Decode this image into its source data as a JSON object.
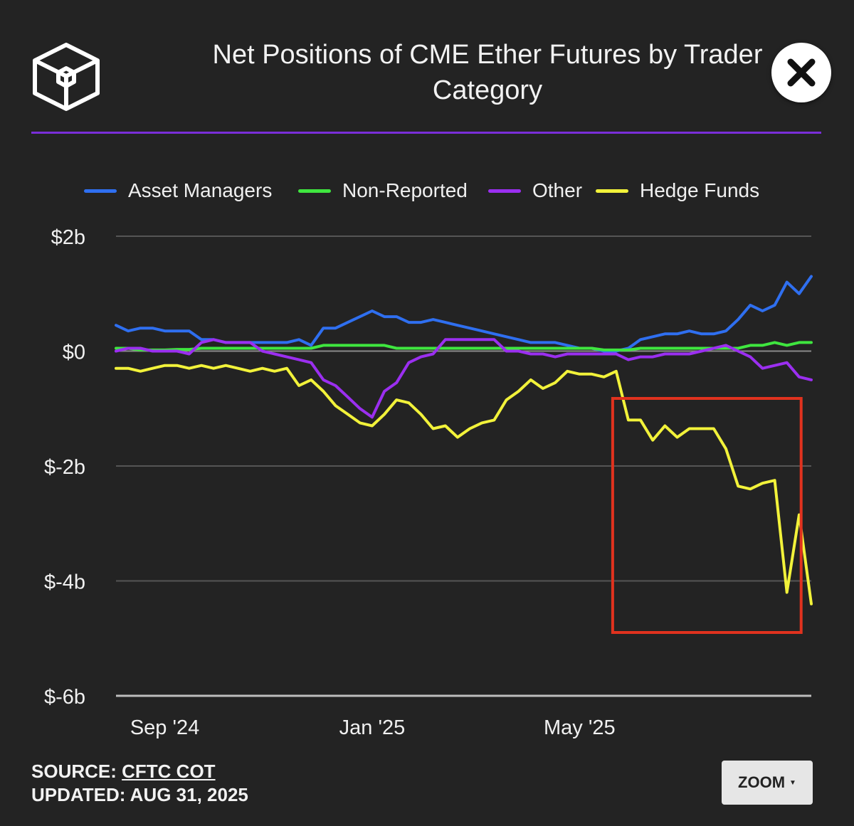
{
  "header": {
    "title": "Net Positions of CME Ether Futures by Trader\nCategory",
    "logo_icon": "cube-logo-icon",
    "close_icon": "close-icon"
  },
  "accent_color": "#7a2ed8",
  "legend": [
    {
      "name": "Asset Managers",
      "color": "#2f6ff0"
    },
    {
      "name": "Non-Reported",
      "color": "#3fe63f"
    },
    {
      "name": "Other",
      "color": "#9b2ff0"
    },
    {
      "name": "Hedge Funds",
      "color": "#f2f23a"
    }
  ],
  "chart_data": {
    "type": "line",
    "title": "Net Positions of CME Ether Futures by Trader Category",
    "xlabel": "",
    "ylabel": "",
    "y_unit": "billion USD",
    "ylim": [
      -6,
      2
    ],
    "yticks": [
      2,
      0,
      -2,
      -4,
      -6
    ],
    "ytick_labels": [
      "$2b",
      "$0",
      "$-2b",
      "$-4b",
      "$-6b"
    ],
    "xticks": [
      {
        "label": "Sep '24",
        "index": 4
      },
      {
        "label": "Jan '25",
        "index": 21
      },
      {
        "label": "May '25",
        "index": 38
      }
    ],
    "grid": true,
    "highlight_box": {
      "from_index": 42,
      "to_index": 55,
      "color": "#e0321e"
    },
    "series": [
      {
        "name": "Asset Managers",
        "color": "#2f6ff0",
        "values": [
          0.45,
          0.35,
          0.4,
          0.4,
          0.35,
          0.35,
          0.35,
          0.2,
          0.2,
          0.15,
          0.15,
          0.15,
          0.15,
          0.15,
          0.15,
          0.2,
          0.1,
          0.4,
          0.4,
          0.5,
          0.6,
          0.7,
          0.6,
          0.6,
          0.5,
          0.5,
          0.55,
          0.5,
          0.45,
          0.4,
          0.35,
          0.3,
          0.25,
          0.2,
          0.15,
          0.15,
          0.15,
          0.1,
          0.05,
          0.05,
          0.0,
          0.0,
          0.05,
          0.2,
          0.25,
          0.3,
          0.3,
          0.35,
          0.3,
          0.3,
          0.35,
          0.55,
          0.8,
          0.7,
          0.8,
          1.2,
          1.0,
          1.3
        ]
      },
      {
        "name": "Non-Reported",
        "color": "#3fe63f",
        "values": [
          0.05,
          0.05,
          0.02,
          0.02,
          0.02,
          0.03,
          0.03,
          0.05,
          0.05,
          0.05,
          0.05,
          0.05,
          0.05,
          0.05,
          0.05,
          0.05,
          0.05,
          0.1,
          0.1,
          0.1,
          0.1,
          0.1,
          0.1,
          0.05,
          0.05,
          0.05,
          0.05,
          0.05,
          0.05,
          0.05,
          0.05,
          0.05,
          0.05,
          0.05,
          0.05,
          0.05,
          0.05,
          0.05,
          0.05,
          0.05,
          0.02,
          0.02,
          0.02,
          0.05,
          0.05,
          0.05,
          0.05,
          0.05,
          0.05,
          0.05,
          0.05,
          0.05,
          0.1,
          0.1,
          0.15,
          0.1,
          0.15,
          0.15
        ]
      },
      {
        "name": "Other",
        "color": "#9b2ff0",
        "values": [
          0.0,
          0.05,
          0.05,
          0.0,
          0.0,
          0.0,
          -0.05,
          0.15,
          0.2,
          0.15,
          0.15,
          0.15,
          0.0,
          -0.05,
          -0.1,
          -0.15,
          -0.2,
          -0.5,
          -0.6,
          -0.8,
          -1.0,
          -1.15,
          -0.7,
          -0.55,
          -0.2,
          -0.1,
          -0.05,
          0.2,
          0.2,
          0.2,
          0.2,
          0.2,
          0.0,
          0.0,
          -0.05,
          -0.05,
          -0.1,
          -0.05,
          -0.05,
          -0.05,
          -0.05,
          -0.05,
          -0.15,
          -0.1,
          -0.1,
          -0.05,
          -0.05,
          -0.05,
          0.0,
          0.05,
          0.1,
          0.0,
          -0.1,
          -0.3,
          -0.25,
          -0.2,
          -0.45,
          -0.5
        ]
      },
      {
        "name": "Hedge Funds",
        "color": "#f2f23a",
        "values": [
          -0.3,
          -0.3,
          -0.35,
          -0.3,
          -0.25,
          -0.25,
          -0.3,
          -0.25,
          -0.3,
          -0.25,
          -0.3,
          -0.35,
          -0.3,
          -0.35,
          -0.3,
          -0.6,
          -0.5,
          -0.7,
          -0.95,
          -1.1,
          -1.25,
          -1.3,
          -1.1,
          -0.85,
          -0.9,
          -1.1,
          -1.35,
          -1.3,
          -1.5,
          -1.35,
          -1.25,
          -1.2,
          -0.85,
          -0.7,
          -0.5,
          -0.65,
          -0.55,
          -0.35,
          -0.4,
          -0.4,
          -0.45,
          -0.35,
          -1.2,
          -1.2,
          -1.55,
          -1.3,
          -1.5,
          -1.35,
          -1.35,
          -1.35,
          -1.7,
          -2.35,
          -2.4,
          -2.3,
          -2.25,
          -4.2,
          -2.85,
          -4.4
        ]
      }
    ]
  },
  "footer": {
    "source_label": "SOURCE:",
    "source_link": "CFTC COT",
    "updated_label": "UPDATED:",
    "updated_value": "AUG 31, 2025",
    "zoom_label": "ZOOM"
  }
}
